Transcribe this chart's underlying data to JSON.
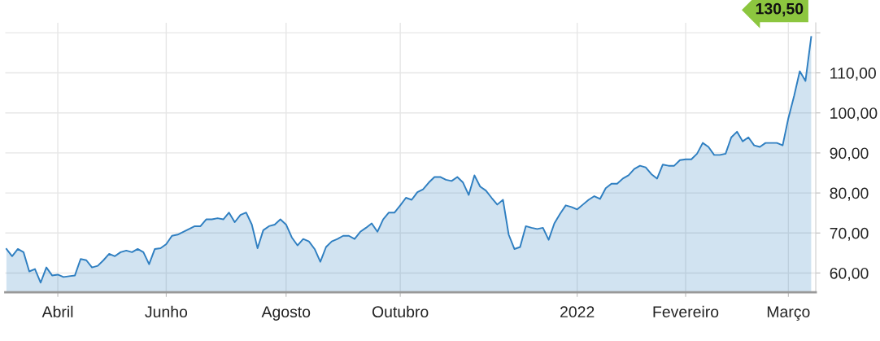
{
  "chart_data": {
    "type": "area",
    "categories": [
      null,
      null,
      null,
      null,
      null,
      null,
      null,
      null,
      null,
      "Abril",
      null,
      null,
      null,
      null,
      null,
      null,
      null,
      null,
      null,
      null,
      null,
      null,
      null,
      null,
      null,
      null,
      null,
      null,
      "Junho",
      null,
      null,
      null,
      null,
      null,
      null,
      null,
      null,
      null,
      null,
      null,
      null,
      null,
      null,
      null,
      null,
      null,
      null,
      null,
      null,
      "Agosto",
      null,
      null,
      null,
      null,
      null,
      null,
      null,
      null,
      null,
      null,
      null,
      null,
      null,
      null,
      null,
      null,
      null,
      null,
      null,
      "Outubro",
      null,
      null,
      null,
      null,
      null,
      null,
      null,
      null,
      null,
      null,
      null,
      null,
      null,
      null,
      null,
      null,
      null,
      null,
      null,
      null,
      null,
      null,
      null,
      null,
      null,
      null,
      null,
      null,
      null,
      null,
      "2022",
      null,
      null,
      null,
      null,
      null,
      null,
      null,
      null,
      null,
      null,
      null,
      null,
      null,
      null,
      null,
      null,
      null,
      null,
      "Fevereiro",
      null,
      null,
      null,
      null,
      null,
      null,
      null,
      null,
      null,
      null,
      null,
      null,
      null,
      null,
      null,
      null,
      null,
      "Março",
      null,
      null,
      null,
      null
    ],
    "series": [
      {
        "color": "#2f7fc1",
        "values": [
          66,
          64.2,
          66,
          65.2,
          60.4,
          61,
          57.6,
          61.4,
          59.4,
          59.6,
          59,
          59.2,
          59.4,
          63.5,
          63.2,
          61.4,
          61.8,
          63.2,
          64.8,
          64.2,
          65.2,
          65.6,
          65.2,
          66,
          65.2,
          62.2,
          66,
          66.2,
          67.2,
          69.3,
          69.6,
          70.3,
          71,
          71.7,
          71.7,
          73.4,
          73.4,
          73.7,
          73.4,
          75.1,
          72.7,
          74.5,
          75.1,
          72.1,
          66.2,
          70.7,
          71.7,
          72.1,
          73.4,
          72.1,
          68.9,
          66.9,
          68.5,
          67.9,
          66,
          62.8,
          66.5,
          67.9,
          68.5,
          69.3,
          69.3,
          68.5,
          70.3,
          71.3,
          72.4,
          70.3,
          73.4,
          75.1,
          75.1,
          76.9,
          78.8,
          78.3,
          80.2,
          80.9,
          82.6,
          84,
          84,
          83.3,
          83,
          84,
          82.6,
          79.5,
          84.4,
          81.6,
          80.6,
          78.8,
          77.1,
          78.3,
          69.6,
          66,
          66.5,
          71.7,
          71.3,
          71,
          71.3,
          68.3,
          72.4,
          74.8,
          76.9,
          76.5,
          75.9,
          77.1,
          78.3,
          79.2,
          78.5,
          81.2,
          82.3,
          82.3,
          83.6,
          84.4,
          86,
          86.8,
          86.4,
          84.7,
          83.6,
          87.1,
          86.8,
          86.8,
          88.2,
          88.4,
          88.4,
          89.8,
          92.5,
          91.5,
          89.5,
          89.5,
          89.8,
          93.9,
          95.3,
          92.9,
          93.9,
          91.9,
          91.5,
          92.5,
          92.5,
          92.5,
          91.9,
          98.7,
          104.2,
          110.4,
          108,
          119
        ]
      }
    ],
    "ylim": [
      55.2,
      122.5
    ],
    "yticks": [
      {
        "value": 60,
        "label": "60,00"
      },
      {
        "value": 70,
        "label": "70,00"
      },
      {
        "value": 80,
        "label": "80,00"
      },
      {
        "value": 90,
        "label": "90,00"
      },
      {
        "value": 100,
        "label": "100,00"
      },
      {
        "value": 110,
        "label": "110,00"
      },
      {
        "value": 120,
        "label": null
      }
    ],
    "grid": true,
    "annotations": [
      "130,50"
    ]
  }
}
